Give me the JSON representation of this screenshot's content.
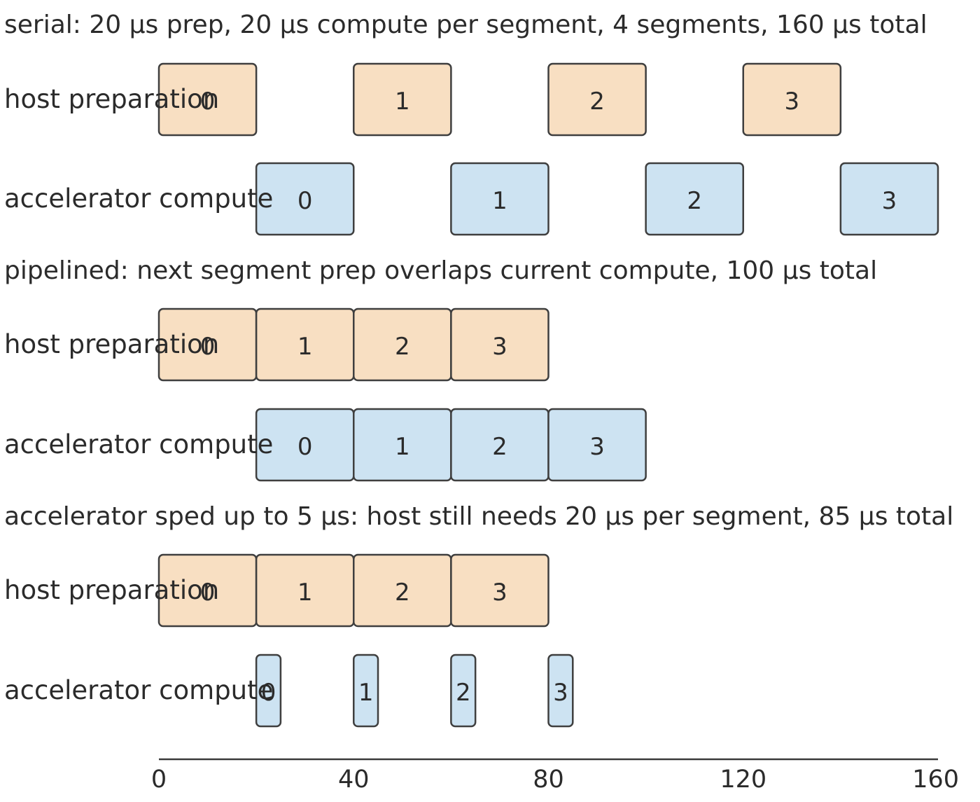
{
  "colors": {
    "host": "#f8dfc2",
    "accelerator": "#cde3f2",
    "outline": "#3f3f3f",
    "text": "#2b2b2b"
  },
  "scenarios": [
    {
      "title": "serial: 20 μs prep, 20 μs compute per segment, 4 segments, 160 μs total",
      "rows": [
        {
          "label": "host preparation",
          "kind": "host",
          "segments": [
            {
              "label": "0",
              "start": 0,
              "end": 20
            },
            {
              "label": "1",
              "start": 40,
              "end": 60
            },
            {
              "label": "2",
              "start": 80,
              "end": 100
            },
            {
              "label": "3",
              "start": 120,
              "end": 140
            }
          ]
        },
        {
          "label": "accelerator compute",
          "kind": "accelerator",
          "segments": [
            {
              "label": "0",
              "start": 20,
              "end": 40
            },
            {
              "label": "1",
              "start": 60,
              "end": 80
            },
            {
              "label": "2",
              "start": 100,
              "end": 120
            },
            {
              "label": "3",
              "start": 140,
              "end": 160
            }
          ]
        }
      ]
    },
    {
      "title": "pipelined: next segment prep overlaps current compute, 100 μs total",
      "rows": [
        {
          "label": "host preparation",
          "kind": "host",
          "segments": [
            {
              "label": "0",
              "start": 0,
              "end": 20
            },
            {
              "label": "1",
              "start": 20,
              "end": 40
            },
            {
              "label": "2",
              "start": 40,
              "end": 60
            },
            {
              "label": "3",
              "start": 60,
              "end": 80
            }
          ]
        },
        {
          "label": "accelerator compute",
          "kind": "accelerator",
          "segments": [
            {
              "label": "0",
              "start": 20,
              "end": 40
            },
            {
              "label": "1",
              "start": 40,
              "end": 60
            },
            {
              "label": "2",
              "start": 60,
              "end": 80
            },
            {
              "label": "3",
              "start": 80,
              "end": 100
            }
          ]
        }
      ]
    },
    {
      "title": "accelerator sped up to 5 μs: host still needs 20 μs per segment, 85 μs total",
      "rows": [
        {
          "label": "host preparation",
          "kind": "host",
          "segments": [
            {
              "label": "0",
              "start": 0,
              "end": 20
            },
            {
              "label": "1",
              "start": 20,
              "end": 40
            },
            {
              "label": "2",
              "start": 40,
              "end": 60
            },
            {
              "label": "3",
              "start": 60,
              "end": 80
            }
          ]
        },
        {
          "label": "accelerator compute",
          "kind": "accelerator",
          "segments": [
            {
              "label": "0",
              "start": 20,
              "end": 25
            },
            {
              "label": "1",
              "start": 40,
              "end": 45
            },
            {
              "label": "2",
              "start": 60,
              "end": 65
            },
            {
              "label": "3",
              "start": 80,
              "end": 85
            }
          ]
        }
      ]
    }
  ],
  "axis": {
    "min": 0,
    "max": 160,
    "ticks": [
      "0",
      "40",
      "80",
      "120",
      "160"
    ]
  }
}
